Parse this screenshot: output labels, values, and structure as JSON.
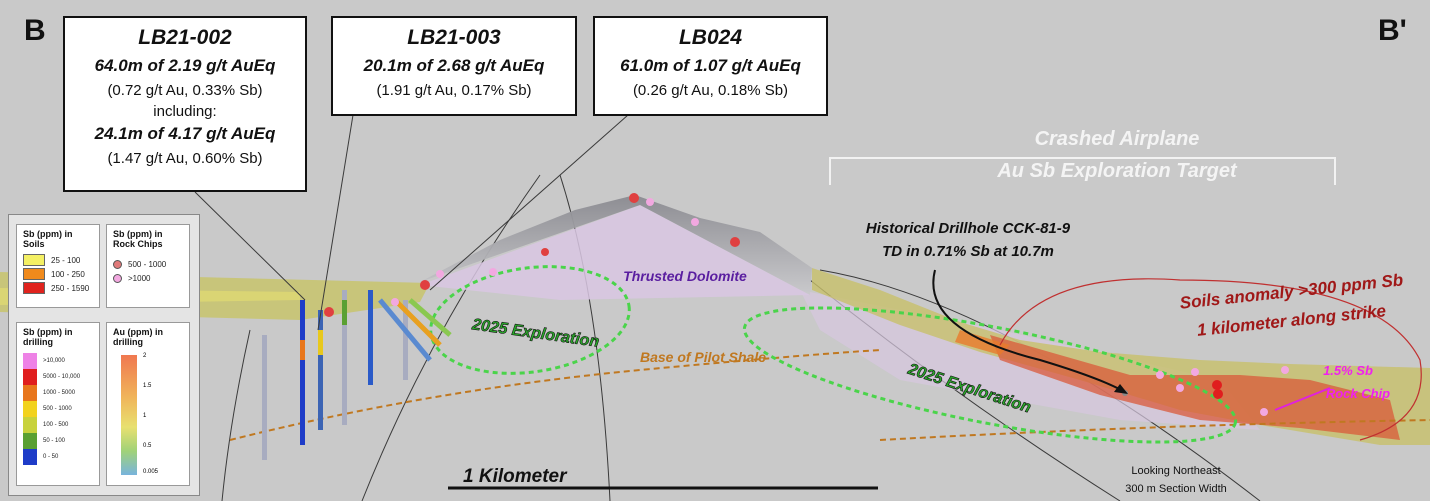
{
  "section_labels": {
    "left": "B",
    "right": "B'"
  },
  "callouts": [
    {
      "id": "LB21-002",
      "highlight": "64.0m of 2.19 g/t AuEq",
      "detail": "(0.72 g/t Au, 0.33% Sb)",
      "including_label": "including:",
      "sub_highlight": "24.1m of 4.17 g/t AuEq",
      "sub_detail": "(1.47 g/t Au, 0.60% Sb)"
    },
    {
      "id": "LB21-003",
      "highlight": "20.1m of 2.68 g/t AuEq",
      "detail": "(1.91 g/t Au, 0.17% Sb)"
    },
    {
      "id": "LB024",
      "highlight": "61.0m of 1.07 g/t AuEq",
      "detail": "(0.26 g/t Au, 0.18% Sb)"
    }
  ],
  "target": {
    "line1": "Crashed Airplane",
    "line2": "Au Sb Exploration Target"
  },
  "historical": {
    "line1": "Historical Drillhole CCK-81-9",
    "line2": "TD in 0.71% Sb at 10.7m"
  },
  "soils": {
    "line1": "Soils anomaly >300 ppm Sb",
    "line2": "1 kilometer along strike"
  },
  "rock_chip": {
    "line1": "1.5% Sb",
    "line2": "Rock Chip"
  },
  "units": {
    "dolomite": "Thrusted Dolomite",
    "shale": "Base of Pilot Shale"
  },
  "exploration_label": "2025 Exploration",
  "scale_bar": "1 Kilometer",
  "view": {
    "line1": "Looking Northeast",
    "line2": "300 m Section Width"
  },
  "legend": {
    "soils_title": [
      "Sb (ppm) in",
      "Soils"
    ],
    "soils": [
      {
        "label": "25 - 100",
        "color": "#f4f064"
      },
      {
        "label": "100 - 250",
        "color": "#f08a1c"
      },
      {
        "label": "250 - 1590",
        "color": "#e0231e"
      }
    ],
    "rock_title": [
      "Sb (ppm) in",
      "Rock Chips"
    ],
    "rock": [
      {
        "label": "500 - 1000",
        "color": "#e07a7a"
      },
      {
        "label": ">1000",
        "color": "#f2a8e0"
      }
    ],
    "drill_sb_title": [
      "Sb (ppm) in",
      "drilling"
    ],
    "drill_sb": [
      {
        "label": ">10,000",
        "color": "#ee82e6"
      },
      {
        "label": "5000 - 10,000",
        "color": "#e01e1e"
      },
      {
        "label": "1000 - 5000",
        "color": "#e8761c"
      },
      {
        "label": "500 - 1000",
        "color": "#f2d21e"
      },
      {
        "label": "100 - 500",
        "color": "#c8d23c"
      },
      {
        "label": "50 - 100",
        "color": "#5aa032"
      },
      {
        "label": "0 - 50",
        "color": "#1e3cc8"
      }
    ],
    "drill_au_title": [
      "Au (ppm) in",
      "drilling"
    ],
    "drill_au_ticks": [
      "2",
      "1.5",
      "1",
      "0.5",
      "0.005"
    ]
  }
}
